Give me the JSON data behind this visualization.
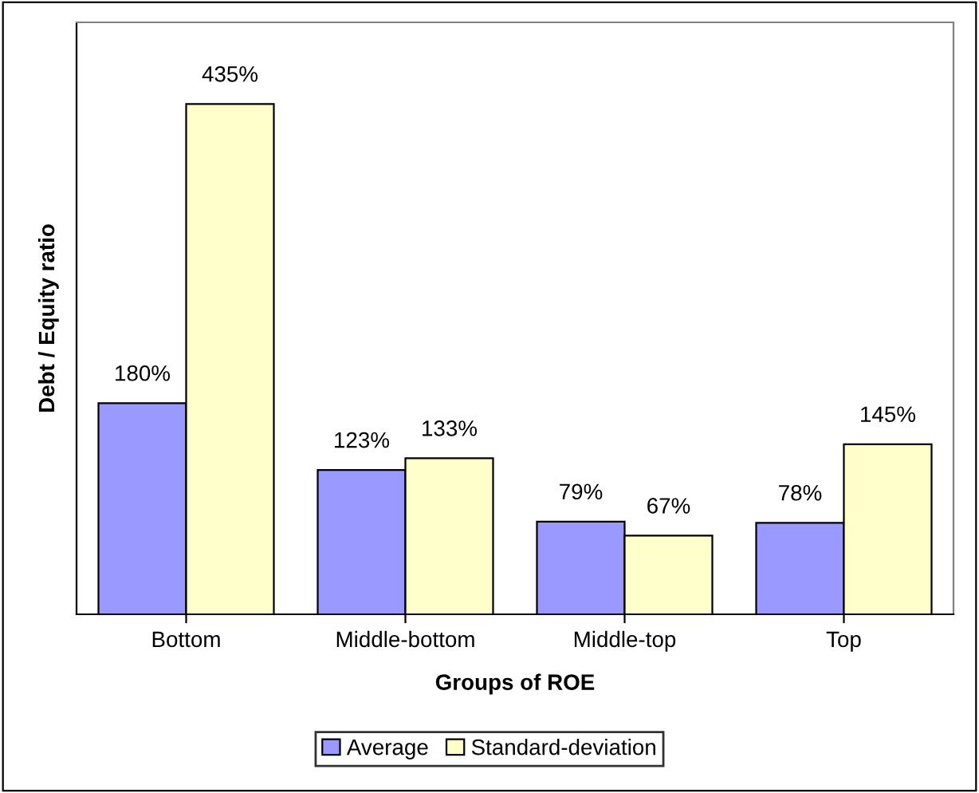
{
  "chart_data": {
    "type": "bar",
    "xlabel": "Groups of ROE",
    "ylabel": "Debt / Equity ratio",
    "categories": [
      "Bottom",
      "Middle-bottom",
      "Middle-top",
      "Top"
    ],
    "series": [
      {
        "name": "Average",
        "color": "#9999ff",
        "values": [
          180,
          123,
          79,
          78
        ],
        "value_labels": [
          "180%",
          "123%",
          "79%",
          "78%"
        ]
      },
      {
        "name": "Standard-deviation",
        "color": "#ffffcc",
        "values": [
          435,
          133,
          67,
          145
        ],
        "value_labels": [
          "435%",
          "133%",
          "67%",
          "145%"
        ]
      }
    ],
    "legend": "bottom",
    "grid": false,
    "tick_labels": "x"
  }
}
